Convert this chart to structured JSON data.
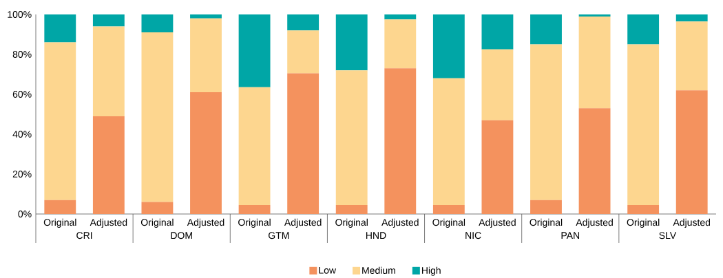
{
  "chart_data": {
    "type": "bar",
    "stacked": true,
    "categories": [
      "Original",
      "Adjusted",
      "Original",
      "Adjusted",
      "Original",
      "Adjusted",
      "Original",
      "Adjusted",
      "Original",
      "Adjusted",
      "Original",
      "Adjusted",
      "Original",
      "Adjusted"
    ],
    "series": [
      {
        "name": "Low",
        "color": "#f4925e",
        "values": [
          7,
          49,
          6,
          61,
          4.5,
          70.5,
          4.5,
          73,
          4.5,
          47,
          7,
          53,
          4.5,
          62
        ]
      },
      {
        "name": "Medium",
        "color": "#fdd68f",
        "values": [
          79,
          45,
          85,
          37,
          59,
          21.5,
          67.5,
          24.5,
          63.5,
          35.5,
          78,
          46,
          80.5,
          34.5
        ]
      },
      {
        "name": "High",
        "color": "#00a6a6",
        "values": [
          14,
          6,
          9,
          2,
          36.5,
          8,
          28,
          2.5,
          32,
          17.5,
          15,
          1,
          15,
          3.5
        ]
      }
    ],
    "annotations": [
      "CRI",
      "DOM",
      "GTM",
      "HND",
      "NIC",
      "PAN",
      "SLV"
    ],
    "ylim": [
      0,
      100
    ],
    "yticks": [
      {
        "value": 0,
        "label": "0%"
      },
      {
        "value": 20,
        "label": "20%"
      },
      {
        "value": 40,
        "label": "40%"
      },
      {
        "value": 60,
        "label": "60%"
      },
      {
        "value": 80,
        "label": "80%"
      },
      {
        "value": 100,
        "label": "100%"
      }
    ],
    "legend": "bottom"
  }
}
